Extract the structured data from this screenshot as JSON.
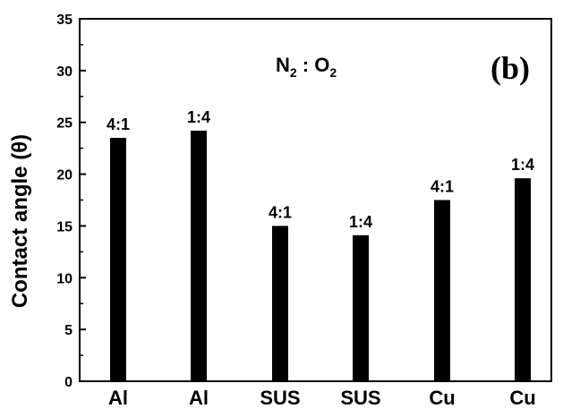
{
  "chart_data": {
    "type": "bar",
    "categories": [
      "Al",
      "Al",
      "SUS",
      "SUS",
      "Cu",
      "Cu"
    ],
    "values": [
      23.5,
      24.2,
      15.0,
      14.1,
      17.5,
      19.6
    ],
    "data_labels": [
      "4:1",
      "1:4",
      "4:1",
      "1:4",
      "4:1",
      "1:4"
    ],
    "xlabel": "",
    "ylabel": "Contact angle (θ)",
    "ylim": [
      0,
      35
    ],
    "yticks": [
      0,
      5,
      10,
      15,
      20,
      25,
      30,
      35
    ],
    "grid": false,
    "annotation": "N2 : O2",
    "annotation_parts": {
      "a": "N",
      "a_sub": "2",
      "sep": " : ",
      "b": "O",
      "b_sub": "2"
    },
    "panel_label": "(b)",
    "bar_color": "#000000"
  }
}
